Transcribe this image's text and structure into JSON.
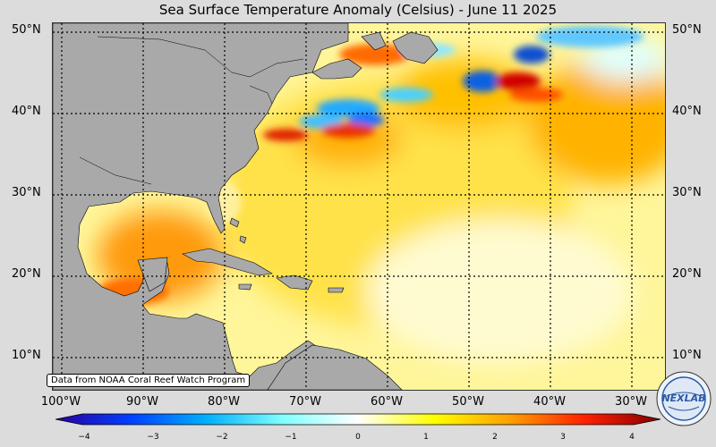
{
  "title": "Sea Surface Temperature Anomaly (Celsius) - June 11 2025",
  "lat_labels": [
    "50°N",
    "40°N",
    "30°N",
    "20°N",
    "10°N"
  ],
  "lat_labels_right": [
    "50°N",
    "40°N",
    "30°N",
    "20°N",
    "10°N"
  ],
  "lon_labels": [
    "100°W",
    "90°W",
    "80°W",
    "70°W",
    "60°W",
    "50°W",
    "40°W",
    "30°W"
  ],
  "attribution": "Data from NOAA Coral Reef Watch Program",
  "colorbar": {
    "min": -4,
    "max": 4,
    "ticks": [
      "−4",
      "−3",
      "−2",
      "−1",
      "0",
      "1",
      "2",
      "3",
      "4"
    ],
    "colors": [
      "#2a00a0",
      "#0040ff",
      "#00b0ff",
      "#80ffff",
      "#ffffff",
      "#ffff00",
      "#ffa000",
      "#ff2000",
      "#800000"
    ]
  },
  "logo": {
    "text": "NEXLAB"
  }
}
